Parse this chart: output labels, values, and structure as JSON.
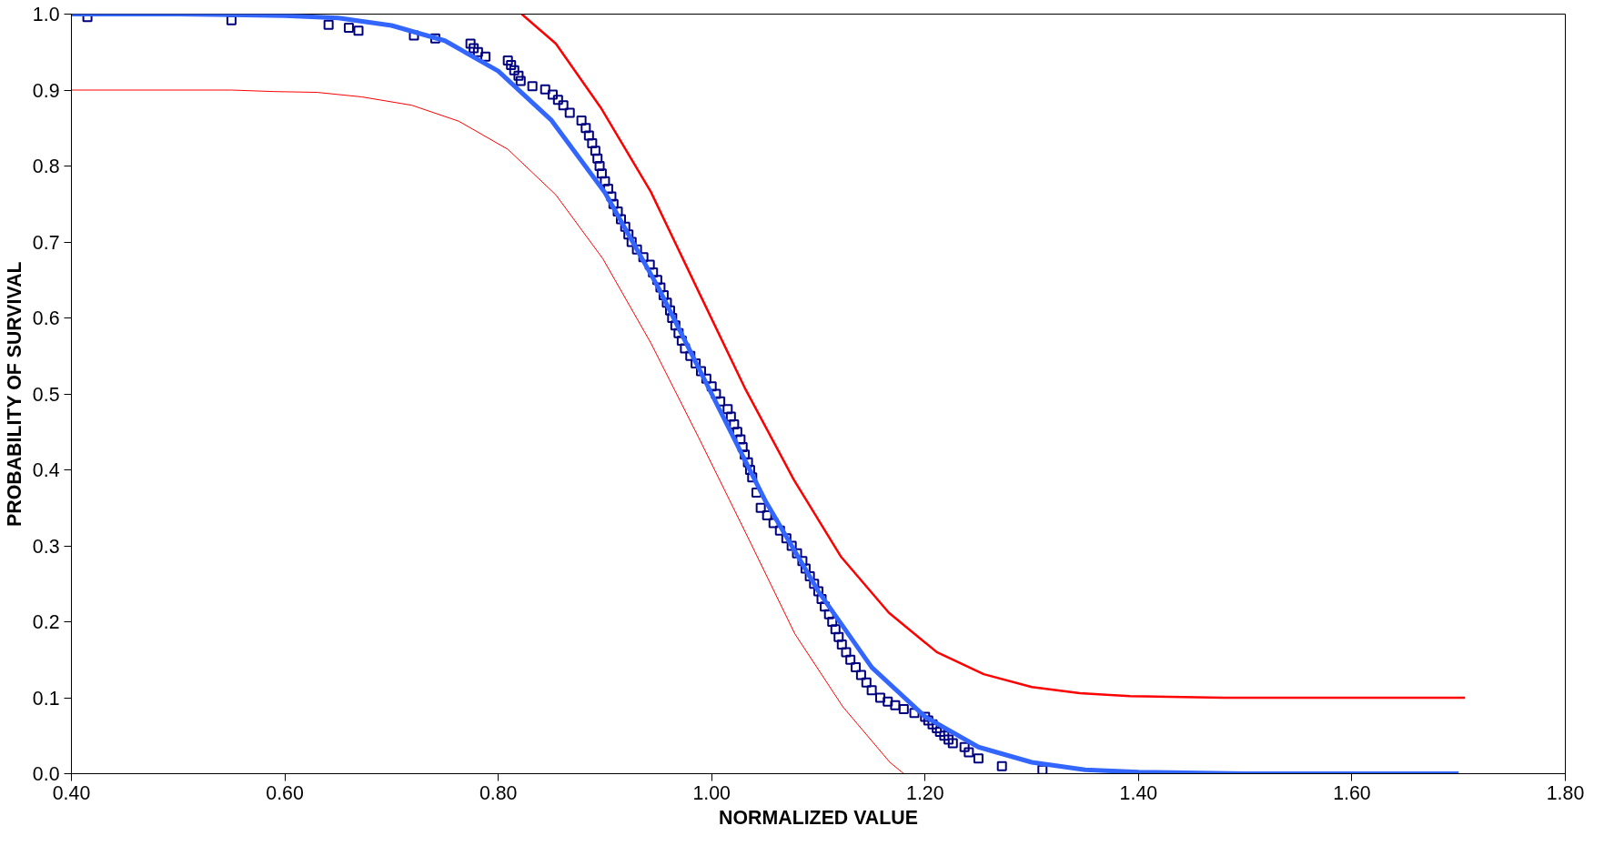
{
  "chart_data": {
    "type": "line",
    "xlabel": "NORMALIZED VALUE",
    "ylabel": "PROBABILITY OF SURVIVAL",
    "xlim": [
      0.4,
      1.8
    ],
    "ylim": [
      0,
      1
    ],
    "xticks": [
      {
        "value": 0.4,
        "label": "0.40"
      },
      {
        "value": 0.6,
        "label": "0.60"
      },
      {
        "value": 0.8,
        "label": "0.80"
      },
      {
        "value": 1.0,
        "label": "1.00"
      },
      {
        "value": 1.2,
        "label": "1.20"
      },
      {
        "value": 1.4,
        "label": "1.40"
      },
      {
        "value": 1.6,
        "label": "1.60"
      },
      {
        "value": 1.8,
        "label": "1.80"
      }
    ],
    "yticks": [
      {
        "value": 0,
        "label": "0.0"
      },
      {
        "value": 0.1,
        "label": "0.1"
      },
      {
        "value": 0.2,
        "label": "0.2"
      },
      {
        "value": 0.3,
        "label": "0.3"
      },
      {
        "value": 0.4,
        "label": "0.4"
      },
      {
        "value": 0.5,
        "label": "0.5"
      },
      {
        "value": 0.6,
        "label": "0.6"
      },
      {
        "value": 0.7,
        "label": "0.7"
      },
      {
        "value": 0.8,
        "label": "0.8"
      },
      {
        "value": 0.9,
        "label": "0.9"
      },
      {
        "value": 1,
        "label": "1.0"
      }
    ],
    "grid": false,
    "series": [
      {
        "color": "#ff0000",
        "line_style": "solid",
        "x": [
          0.4,
          0.55,
          0.59,
          0.63,
          0.672,
          0.719,
          0.763,
          0.809,
          0.854,
          0.898,
          0.943,
          0.988,
          1.034,
          1.078,
          1.123,
          1.167,
          1.18
        ],
        "values": [
          0.9,
          0.9,
          0.898,
          0.897,
          0.891,
          0.88,
          0.859,
          0.822,
          0.762,
          0.678,
          0.567,
          0.442,
          0.311,
          0.184,
          0.088,
          0.015,
          0.0
        ]
      },
      {
        "color": "#ff0000",
        "line_style": "solid",
        "x": [
          0.822,
          0.854,
          0.896,
          0.943,
          0.989,
          1.031,
          1.077,
          1.121,
          1.166,
          1.211,
          1.255,
          1.3,
          1.345,
          1.392,
          1.48,
          1.706
        ],
        "values": [
          1.0,
          0.961,
          0.877,
          0.766,
          0.631,
          0.508,
          0.387,
          0.286,
          0.212,
          0.16,
          0.131,
          0.114,
          0.106,
          0.102,
          0.1,
          0.1
        ]
      },
      {
        "type": "scatter",
        "color": "#000080",
        "marker": "square",
        "x": [
          0.415,
          0.55,
          0.641,
          0.66,
          0.669,
          0.721,
          0.741,
          0.774,
          0.777,
          0.781,
          0.788,
          0.809,
          0.812,
          0.815,
          0.819,
          0.821,
          0.832,
          0.844,
          0.851,
          0.856,
          0.861,
          0.867,
          0.878,
          0.882,
          0.885,
          0.888,
          0.891,
          0.893,
          0.895,
          0.897,
          0.9,
          0.903,
          0.906,
          0.908,
          0.912,
          0.915,
          0.919,
          0.922,
          0.925,
          0.93,
          0.936,
          0.942,
          0.945,
          0.949,
          0.952,
          0.955,
          0.958,
          0.961,
          0.963,
          0.966,
          0.969,
          0.972,
          0.975,
          0.98,
          0.985,
          0.99,
          0.995,
          1.0,
          1.004,
          1.008,
          1.015,
          1.018,
          1.021,
          1.024,
          1.027,
          1.029,
          1.031,
          1.034,
          1.036,
          1.038,
          1.042,
          1.046,
          1.052,
          1.058,
          1.064,
          1.07,
          1.075,
          1.08,
          1.085,
          1.088,
          1.092,
          1.096,
          1.1,
          1.103,
          1.106,
          1.11,
          1.113,
          1.116,
          1.119,
          1.122,
          1.126,
          1.13,
          1.135,
          1.14,
          1.145,
          1.15,
          1.158,
          1.165,
          1.172,
          1.18,
          1.19,
          1.2,
          1.203,
          1.207,
          1.211,
          1.214,
          1.218,
          1.222,
          1.226,
          1.237,
          1.241,
          1.25,
          1.272,
          1.31
        ],
        "values": [
          0.996,
          0.992,
          0.986,
          0.982,
          0.978,
          0.972,
          0.968,
          0.961,
          0.955,
          0.95,
          0.944,
          0.939,
          0.933,
          0.926,
          0.919,
          0.912,
          0.905,
          0.901,
          0.894,
          0.887,
          0.88,
          0.87,
          0.86,
          0.85,
          0.84,
          0.83,
          0.82,
          0.81,
          0.8,
          0.79,
          0.78,
          0.77,
          0.76,
          0.75,
          0.74,
          0.73,
          0.72,
          0.71,
          0.7,
          0.69,
          0.68,
          0.67,
          0.66,
          0.65,
          0.64,
          0.63,
          0.62,
          0.61,
          0.6,
          0.59,
          0.58,
          0.57,
          0.56,
          0.55,
          0.54,
          0.53,
          0.52,
          0.51,
          0.5,
          0.49,
          0.48,
          0.47,
          0.46,
          0.45,
          0.44,
          0.43,
          0.42,
          0.41,
          0.4,
          0.39,
          0.37,
          0.35,
          0.34,
          0.33,
          0.32,
          0.31,
          0.3,
          0.29,
          0.28,
          0.27,
          0.26,
          0.25,
          0.24,
          0.23,
          0.22,
          0.21,
          0.2,
          0.19,
          0.18,
          0.17,
          0.16,
          0.15,
          0.14,
          0.13,
          0.12,
          0.11,
          0.1,
          0.095,
          0.09,
          0.085,
          0.08,
          0.075,
          0.07,
          0.065,
          0.06,
          0.055,
          0.05,
          0.045,
          0.04,
          0.035,
          0.028,
          0.02,
          0.01,
          0.005
        ]
      },
      {
        "color": "#3366ff",
        "line_style": "solid",
        "x": [
          0.4,
          0.5,
          0.6,
          0.65,
          0.7,
          0.75,
          0.8,
          0.85,
          0.9,
          0.95,
          1.0,
          1.05,
          1.1,
          1.15,
          1.2,
          1.25,
          1.3,
          1.35,
          1.4,
          1.5,
          1.6,
          1.7
        ],
        "values": [
          1.0,
          1.0,
          0.998,
          0.995,
          0.985,
          0.965,
          0.925,
          0.86,
          0.765,
          0.64,
          0.5,
          0.36,
          0.24,
          0.14,
          0.075,
          0.035,
          0.015,
          0.005,
          0.002,
          0.0,
          0.0,
          0.0
        ]
      }
    ]
  }
}
